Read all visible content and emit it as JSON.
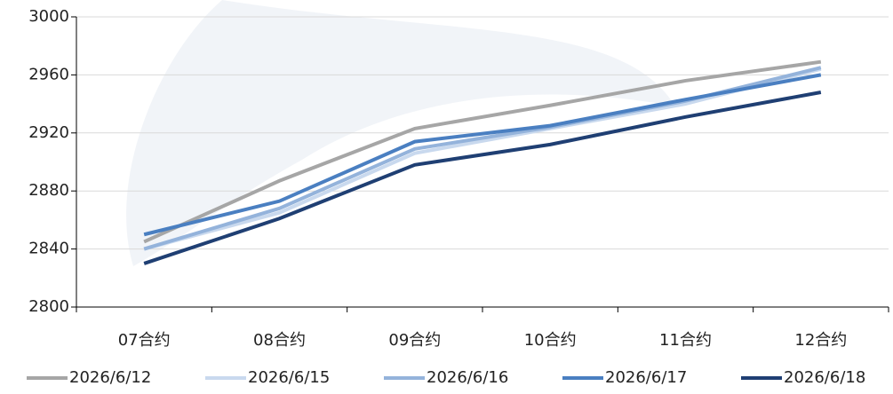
{
  "chart_data": {
    "type": "line",
    "categories": [
      "07合约",
      "08合约",
      "09合约",
      "10合约",
      "11合约",
      "12合约"
    ],
    "series": [
      {
        "name": "2026/6/12",
        "color": "#a6a6a6",
        "values": [
          2845,
          2887,
          2923,
          2939,
          2956,
          2969
        ]
      },
      {
        "name": "2026/6/15",
        "color": "#c9d9ee",
        "values": [
          2840,
          2865,
          2906,
          2923,
          2940,
          2964
        ]
      },
      {
        "name": "2026/6/16",
        "color": "#94b3db",
        "values": [
          2840,
          2868,
          2909,
          2924,
          2942,
          2965
        ]
      },
      {
        "name": "2026/6/17",
        "color": "#4a7fc1",
        "values": [
          2850,
          2873,
          2914,
          2925,
          2943,
          2960
        ]
      },
      {
        "name": "2026/6/18",
        "color": "#1f3f73",
        "values": [
          2830,
          2861,
          2898,
          2912,
          2931,
          2948
        ]
      }
    ],
    "ylim": [
      2800,
      3000
    ],
    "yticks": [
      2800,
      2840,
      2880,
      2920,
      2960,
      3000
    ],
    "grid": true
  }
}
